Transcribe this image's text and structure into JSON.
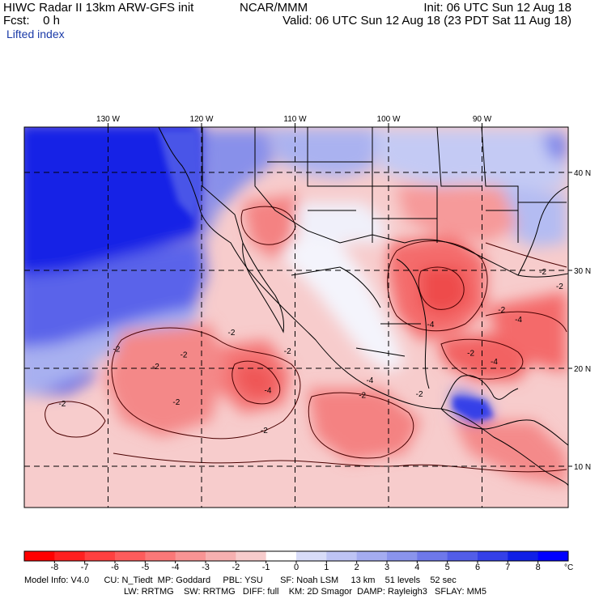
{
  "header": {
    "model": "HIWC Radar II 13km ARW-GFS init",
    "org": "NCAR/MMM",
    "init": "Init: 06 UTC Sun 12 Aug 18",
    "fcst": "Fcst:    0 h",
    "valid": "Valid: 06 UTC Sun 12 Aug 18 (23 PDT Sat 11 Aug 18)",
    "variable": "Lifted index"
  },
  "map": {
    "lon_labels": [
      {
        "value": -130,
        "label": "130 W"
      },
      {
        "value": -120,
        "label": "120 W"
      },
      {
        "value": -110,
        "label": "110 W"
      },
      {
        "value": -100,
        "label": "100 W"
      },
      {
        "value": -90,
        "label": "90 W"
      }
    ],
    "lat_labels": [
      {
        "value": 40,
        "label": "40 N"
      },
      {
        "value": 30,
        "label": "30 N"
      },
      {
        "value": 20,
        "label": "20 N"
      },
      {
        "value": 10,
        "label": "10 N"
      }
    ],
    "contour_labels": [
      {
        "label": "-2",
        "lon": -129.1,
        "lat": 21.7
      },
      {
        "label": "-2",
        "lon": -124.9,
        "lat": 19.9
      },
      {
        "label": "-2",
        "lon": -121.9,
        "lat": 21.1
      },
      {
        "label": "-2",
        "lon": -122.7,
        "lat": 16.3
      },
      {
        "label": "-2",
        "lon": -116.8,
        "lat": 23.4
      },
      {
        "label": "-2",
        "lon": -110.8,
        "lat": 21.5
      },
      {
        "label": "-4",
        "lon": -112.9,
        "lat": 17.5
      },
      {
        "label": "-2",
        "lon": -134.9,
        "lat": 16.1
      },
      {
        "label": "-2",
        "lon": -113.3,
        "lat": 13.4
      },
      {
        "label": "-2",
        "lon": -102.8,
        "lat": 17.0
      },
      {
        "label": "-4",
        "lon": -102.0,
        "lat": 18.5
      },
      {
        "label": "-4",
        "lon": -95.5,
        "lat": 24.2
      },
      {
        "label": "-4",
        "lon": -88.7,
        "lat": 20.4
      },
      {
        "label": "-4",
        "lon": -86.1,
        "lat": 24.7
      },
      {
        "label": "-2",
        "lon": -91.2,
        "lat": 21.3
      },
      {
        "label": "-2",
        "lon": -87.9,
        "lat": 25.7
      },
      {
        "label": "-2",
        "lon": -81.7,
        "lat": 28.1
      },
      {
        "label": "-2",
        "lon": -83.5,
        "lat": 29.6
      },
      {
        "label": "-2",
        "lon": -96.7,
        "lat": 17.1
      }
    ]
  },
  "colorbar": {
    "ticks": [
      "-8",
      "-7",
      "-6",
      "-5",
      "-4",
      "-3",
      "-2",
      "-1",
      "0",
      "1",
      "2",
      "3",
      "4",
      "5",
      "6",
      "7",
      "8"
    ],
    "unit": "°C",
    "colors": [
      "#ff0000",
      "#ff2020",
      "#ff4040",
      "#fd5c5c",
      "#fa7878",
      "#f89494",
      "#f6b0b0",
      "#f7cccc",
      "#ffffff",
      "#d8dcf8",
      "#bec4f4",
      "#a4acf0",
      "#8a94ec",
      "#6e78ea",
      "#525de8",
      "#3440e8",
      "#1020e6",
      "#0000ff"
    ]
  },
  "footer": {
    "line1": "Model Info: V4.0      CU: N_Tiedt  MP: Goddard     PBL: YSU       SF: Noah LSM     13 km    51 levels    52 sec",
    "line2": "LW: RRTMG    SW: RRTMG   DIFF: full    KM: 2D Smagor  DAMP: Rayleigh3   SFLAY: MM5"
  }
}
